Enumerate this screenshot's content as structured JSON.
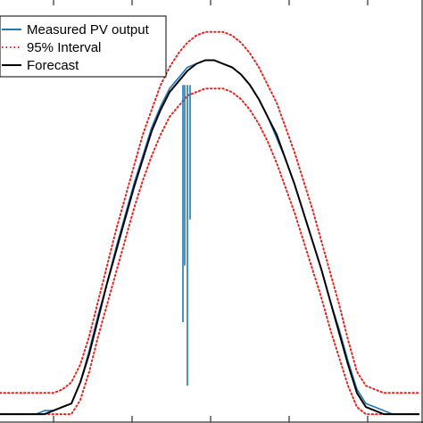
{
  "chart_data": {
    "type": "line",
    "title": "",
    "xlabel": "",
    "ylabel": "",
    "x": [
      0,
      10,
      20,
      30,
      40,
      50,
      60,
      70,
      80,
      90,
      100,
      110,
      120,
      130,
      140,
      150,
      160,
      170,
      180,
      190,
      200,
      210,
      220,
      230,
      240,
      250,
      260,
      270,
      280,
      290,
      300,
      310,
      320,
      330,
      340,
      350,
      360,
      370,
      380,
      390,
      400,
      410,
      420,
      430,
      440,
      450,
      460,
      470
    ],
    "series": [
      {
        "name": "Measured PV output",
        "color": "#1f77b4",
        "style": "solid",
        "values": [
          0.0,
          0.0,
          0.0,
          0.0,
          0.0,
          0.01,
          0.01,
          0.02,
          0.03,
          0.09,
          0.18,
          0.28,
          0.37,
          0.47,
          0.56,
          0.65,
          0.73,
          0.81,
          0.87,
          0.92,
          0.95,
          0.98,
          0.99,
          1.0,
          1.0,
          0.99,
          0.98,
          0.96,
          0.93,
          0.89,
          0.84,
          0.78,
          0.72,
          0.65,
          0.57,
          0.49,
          0.41,
          0.32,
          0.24,
          0.15,
          0.07,
          0.03,
          0.02,
          0.01,
          0.0,
          0.0,
          0.0,
          0.0
        ]
      },
      {
        "name": "95% Interval",
        "color": "#e8231e",
        "style": "dotted",
        "bounds": {
          "upper": [
            0.06,
            0.06,
            0.06,
            0.06,
            0.06,
            0.06,
            0.06,
            0.07,
            0.09,
            0.14,
            0.22,
            0.32,
            0.42,
            0.52,
            0.61,
            0.7,
            0.79,
            0.86,
            0.93,
            0.98,
            1.02,
            1.05,
            1.07,
            1.08,
            1.08,
            1.08,
            1.07,
            1.05,
            1.02,
            0.98,
            0.93,
            0.88,
            0.81,
            0.74,
            0.66,
            0.58,
            0.49,
            0.4,
            0.31,
            0.21,
            0.12,
            0.08,
            0.07,
            0.06,
            0.06,
            0.06,
            0.06,
            0.06
          ],
          "lower": [
            0.0,
            0.0,
            0.0,
            0.0,
            0.0,
            0.0,
            0.0,
            0.0,
            0.0,
            0.04,
            0.12,
            0.22,
            0.31,
            0.4,
            0.49,
            0.58,
            0.66,
            0.73,
            0.79,
            0.84,
            0.87,
            0.9,
            0.91,
            0.92,
            0.92,
            0.92,
            0.91,
            0.89,
            0.86,
            0.82,
            0.77,
            0.71,
            0.64,
            0.57,
            0.49,
            0.41,
            0.33,
            0.24,
            0.16,
            0.08,
            0.02,
            0.0,
            0.0,
            0.0,
            0.0,
            0.0,
            0.0,
            0.0
          ]
        }
      },
      {
        "name": "Forecast",
        "color": "#000000",
        "style": "solid",
        "values": [
          0.0,
          0.0,
          0.0,
          0.0,
          0.0,
          0.0,
          0.01,
          0.02,
          0.03,
          0.09,
          0.17,
          0.27,
          0.37,
          0.46,
          0.55,
          0.64,
          0.72,
          0.8,
          0.86,
          0.91,
          0.94,
          0.97,
          0.99,
          1.0,
          1.0,
          0.99,
          0.98,
          0.96,
          0.93,
          0.89,
          0.84,
          0.79,
          0.72,
          0.65,
          0.57,
          0.49,
          0.41,
          0.32,
          0.23,
          0.14,
          0.06,
          0.02,
          0.01,
          0.0,
          0.0,
          0.0,
          0.0,
          0.0
        ]
      }
    ],
    "measured_dips": [
      {
        "x": 205,
        "y": 0.26
      },
      {
        "x": 207,
        "y": 0.42
      },
      {
        "x": 210,
        "y": 0.08
      },
      {
        "x": 213,
        "y": 0.55
      }
    ],
    "xlim": [
      0,
      474
    ],
    "ylim": [
      -0.02,
      1.15
    ],
    "grid": false,
    "legend": {
      "position": "top-left",
      "entries": [
        {
          "label": "Measured PV output",
          "color": "#1f77b4",
          "style": "solid"
        },
        {
          "label": "95% Interval",
          "color": "#e8231e",
          "style": "dotted"
        },
        {
          "label": "Forecast",
          "color": "#000000",
          "style": "solid"
        }
      ]
    }
  }
}
